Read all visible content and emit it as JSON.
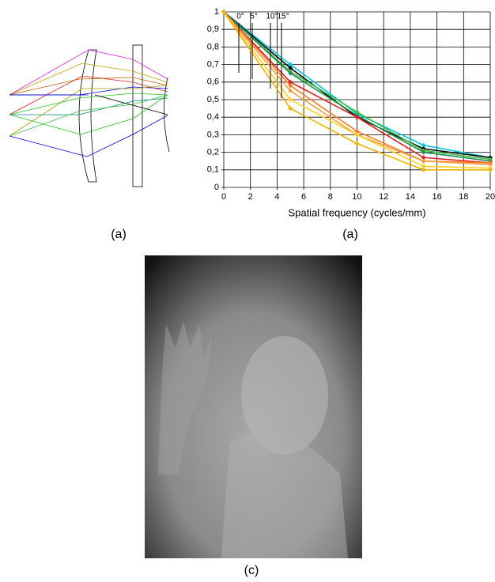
{
  "chart_data": {
    "type": "line",
    "x": [
      0,
      5,
      10,
      15,
      20
    ],
    "series": [
      {
        "color": "#00c8e0",
        "values": [
          1,
          0.7,
          0.42,
          0.24,
          0.17
        ]
      },
      {
        "color": "#000000",
        "values": [
          1,
          0.68,
          0.4,
          0.22,
          0.17
        ]
      },
      {
        "color": "#40c040",
        "values": [
          1,
          0.66,
          0.43,
          0.21,
          0.16
        ]
      },
      {
        "color": "#2a8a5a",
        "values": [
          1,
          0.65,
          0.41,
          0.2,
          0.15
        ]
      },
      {
        "color": "#e02020",
        "values": [
          1,
          0.6,
          0.4,
          0.17,
          0.14
        ]
      },
      {
        "color": "#ff7a20",
        "values": [
          1,
          0.58,
          0.32,
          0.15,
          0.14
        ]
      },
      {
        "color": "#f0a040",
        "values": [
          1,
          0.55,
          0.3,
          0.15,
          0.13
        ]
      },
      {
        "color": "#ffd020",
        "values": [
          1,
          0.5,
          0.3,
          0.12,
          0.11
        ]
      },
      {
        "color": "#f0b000",
        "values": [
          1,
          0.45,
          0.25,
          0.1,
          0.1
        ]
      }
    ],
    "xlim": [
      0,
      20
    ],
    "xticks": [
      0,
      2,
      4,
      6,
      8,
      10,
      12,
      14,
      16,
      18,
      20
    ],
    "ylim": [
      0,
      1
    ],
    "yticks": [
      0,
      {
        "value": 0.1,
        "label": "0,1"
      },
      {
        "value": 0.2,
        "label": "0,2"
      },
      {
        "value": 0.3,
        "label": "0,3"
      },
      {
        "value": 0.4,
        "label": "0,4"
      },
      {
        "value": 0.5,
        "label": "0,5"
      },
      {
        "value": 0.6,
        "label": "0,6"
      },
      {
        "value": 0.7,
        "label": "0,7"
      },
      {
        "value": 0.8,
        "label": "0,8"
      },
      {
        "value": 0.9,
        "label": "0,9"
      },
      1
    ],
    "x_label": "Spatial frequency (cycles/mm)",
    "grid": true,
    "annotations": [
      "0°",
      "5°",
      "10°",
      "15°"
    ]
  },
  "captions": [
    "(a)",
    "(a)",
    "(c)"
  ]
}
